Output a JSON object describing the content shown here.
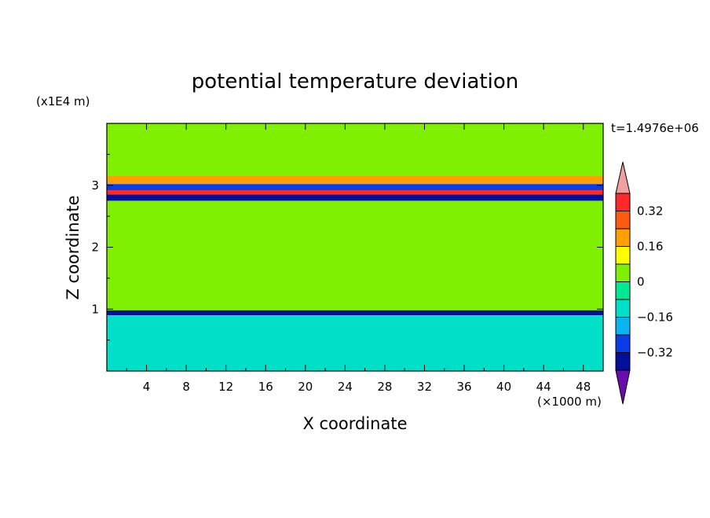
{
  "chart_data": {
    "type": "heatmap",
    "title": "potential temperature deviation",
    "xlabel": "X coordinate",
    "ylabel": "Z coordinate",
    "x_unit": "(×1000 m)",
    "y_unit": "(x1E4 m)",
    "time_label": "t=1.4976e+06",
    "xlim": [
      0,
      50
    ],
    "ylim": [
      0,
      4
    ],
    "x_ticks": [
      4,
      8,
      12,
      16,
      20,
      24,
      28,
      32,
      36,
      40,
      44,
      48
    ],
    "y_ticks": [
      1,
      2,
      3
    ],
    "colorbar": {
      "levels": [
        -0.4,
        -0.32,
        -0.24,
        -0.16,
        -0.08,
        0,
        0.08,
        0.16,
        0.24,
        0.32,
        0.4
      ],
      "colors": [
        "#6a0dad",
        "#00109a",
        "#0a3ce8",
        "#0ab4f0",
        "#00e0c8",
        "#00e890",
        "#7ef000",
        "#ffff00",
        "#ffa000",
        "#ff5a10",
        "#ff2828",
        "#f0a0a0"
      ],
      "tick_labels": [
        "0.32",
        "0.16",
        "0",
        "−0.16",
        "−0.32"
      ],
      "tick_values": [
        0.32,
        0.16,
        0,
        -0.16,
        -0.32
      ]
    },
    "layers": [
      {
        "z": [
          3.9,
          4.0
        ],
        "value": 0.05
      },
      {
        "z": [
          3.15,
          3.9
        ],
        "value": 0.06
      },
      {
        "z": [
          3.02,
          3.15
        ],
        "value": 0.2
      },
      {
        "z": [
          2.92,
          3.02
        ],
        "value": -0.25
      },
      {
        "z": [
          2.85,
          2.92
        ],
        "value": 0.36
      },
      {
        "z": [
          2.75,
          2.85
        ],
        "value": -0.4
      },
      {
        "z": [
          0.98,
          2.75
        ],
        "value": 0.05
      },
      {
        "z": [
          0.9,
          0.98
        ],
        "value": -0.38
      },
      {
        "z": [
          0.0,
          0.9
        ],
        "value": -0.1
      }
    ]
  }
}
